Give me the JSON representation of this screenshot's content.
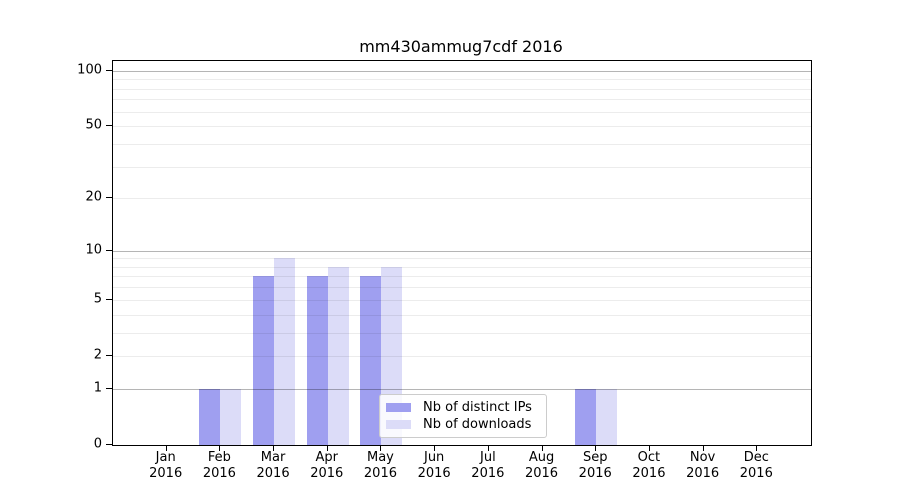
{
  "chart_data": {
    "type": "bar",
    "title": "mm430ammug7cdf 2016",
    "categories": [
      "Jan 2016",
      "Feb 2016",
      "Mar 2016",
      "Apr 2016",
      "May 2016",
      "Jun 2016",
      "Jul 2016",
      "Aug 2016",
      "Sep 2016",
      "Oct 2016",
      "Nov 2016",
      "Dec 2016"
    ],
    "series": [
      {
        "name": "Nb of distinct IPs",
        "color": "#9f9ff0",
        "values": [
          0,
          1,
          7,
          7,
          7,
          0,
          0,
          0,
          1,
          0,
          0,
          0
        ]
      },
      {
        "name": "Nb of downloads",
        "color": "#dcdcf8",
        "values": [
          0,
          1,
          9,
          8,
          8,
          0,
          0,
          0,
          1,
          0,
          0,
          0
        ]
      }
    ],
    "xlabel": "",
    "ylabel": "",
    "yscale": "log1p",
    "ylim": [
      0,
      113
    ],
    "yticks": [
      0,
      1,
      2,
      5,
      10,
      20,
      50,
      100
    ],
    "gridlines": {
      "major": [
        1,
        10,
        100
      ],
      "minor": [
        2,
        3,
        4,
        5,
        6,
        7,
        8,
        9,
        20,
        30,
        40,
        50,
        60,
        70,
        80,
        90
      ]
    },
    "grid": "horizontal",
    "legend": {
      "position": "lower-center",
      "entries": [
        "Nb of distinct IPs",
        "Nb of downloads"
      ]
    }
  },
  "colors": {
    "distinct_ips": "#9f9ff0",
    "downloads": "#dcdcf8",
    "spine": "#000000",
    "major_grid": "#b5b5b5",
    "minor_grid": "#ececec",
    "legend_border": "#cccccc",
    "text": "#000000"
  }
}
